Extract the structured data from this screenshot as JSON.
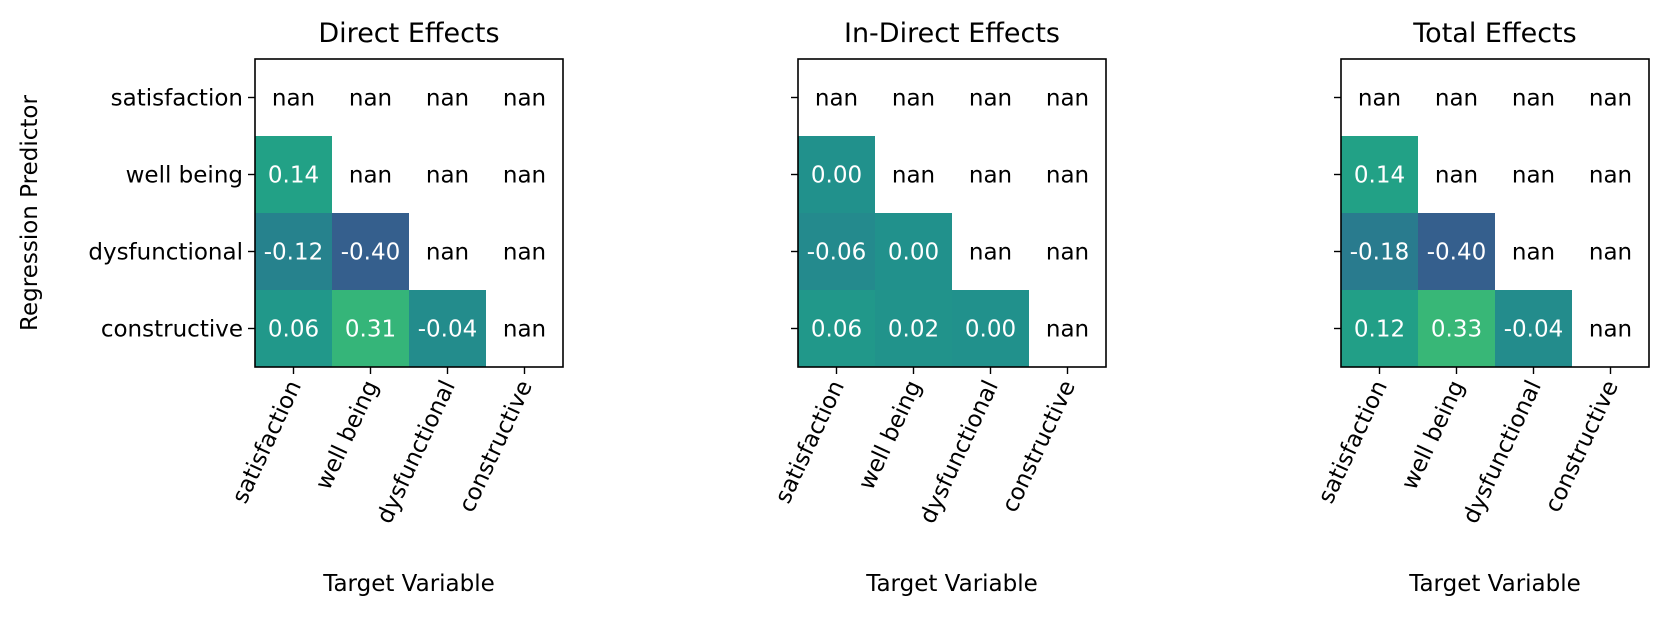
{
  "chart_data": {
    "type": "heatmap",
    "colormap": "viridis",
    "color_range": [
      -1,
      1
    ],
    "nan_color": "#ffffff",
    "ylabel": "Regression Predictor",
    "rows": [
      "satisfaction",
      "well being",
      "dysfunctional",
      "constructive"
    ],
    "columns": [
      "satisfaction",
      "well being",
      "dysfunctional",
      "constructive"
    ],
    "panels": [
      {
        "title": "Direct Effects",
        "xlabel": "Target Variable",
        "values": [
          [
            null,
            null,
            null,
            null
          ],
          [
            0.14,
            null,
            null,
            null
          ],
          [
            -0.12,
            -0.4,
            null,
            null
          ],
          [
            0.06,
            0.31,
            -0.04,
            null
          ]
        ],
        "labels": [
          [
            "nan",
            "nan",
            "nan",
            "nan"
          ],
          [
            "0.14",
            "nan",
            "nan",
            "nan"
          ],
          [
            "-0.12",
            "-0.40",
            "nan",
            "nan"
          ],
          [
            "0.06",
            "0.31",
            "-0.04",
            "nan"
          ]
        ]
      },
      {
        "title": "In-Direct Effects",
        "xlabel": "Target Variable",
        "values": [
          [
            null,
            null,
            null,
            null
          ],
          [
            0.0,
            null,
            null,
            null
          ],
          [
            -0.06,
            0.0,
            null,
            null
          ],
          [
            0.06,
            0.02,
            0.0,
            null
          ]
        ],
        "labels": [
          [
            "nan",
            "nan",
            "nan",
            "nan"
          ],
          [
            "0.00",
            "nan",
            "nan",
            "nan"
          ],
          [
            "-0.06",
            "0.00",
            "nan",
            "nan"
          ],
          [
            "0.06",
            "0.02",
            "0.00",
            "nan"
          ]
        ]
      },
      {
        "title": "Total Effects",
        "xlabel": "Target Variable",
        "values": [
          [
            null,
            null,
            null,
            null
          ],
          [
            0.14,
            null,
            null,
            null
          ],
          [
            -0.18,
            -0.4,
            null,
            null
          ],
          [
            0.12,
            0.33,
            -0.04,
            null
          ]
        ],
        "labels": [
          [
            "nan",
            "nan",
            "nan",
            "nan"
          ],
          [
            "0.14",
            "nan",
            "nan",
            "nan"
          ],
          [
            "-0.18",
            "-0.40",
            "nan",
            "nan"
          ],
          [
            "0.12",
            "0.33",
            "-0.04",
            "nan"
          ]
        ]
      }
    ]
  }
}
